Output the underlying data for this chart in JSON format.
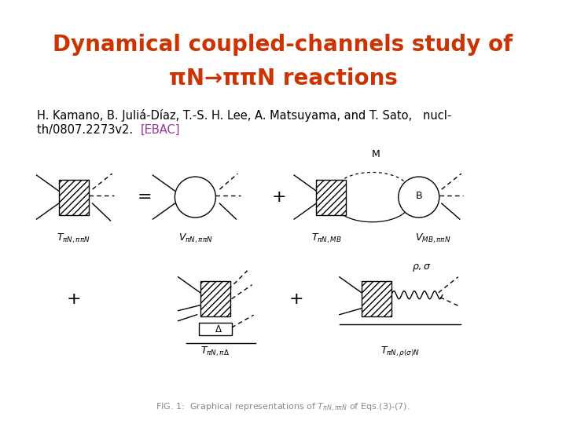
{
  "title_line1": "Dynamical coupled-channels study of",
  "title_line2": "πN→ππN reactions",
  "title_color": "#cc3300",
  "title_fontsize": 20,
  "author_line1": "H. Kamano, B. Juliá-Díaz, T.-S. H. Lee, A. Matsuyama, and T. Sato,   nucl-",
  "author_line2": "th/0807.2273v2. ",
  "author_color": "#000000",
  "author_fontsize": 10.5,
  "ebac_text": "[EBAC]",
  "ebac_color": "#993399",
  "ebac_fontsize": 10.5,
  "caption_text": "FIG. 1:  Graphical representations of $T_{\\pi N, \\pi\\pi N}$ of Eqs.(3)-(7).",
  "caption_color": "#888888",
  "caption_fontsize": 8,
  "background_color": "#ffffff"
}
